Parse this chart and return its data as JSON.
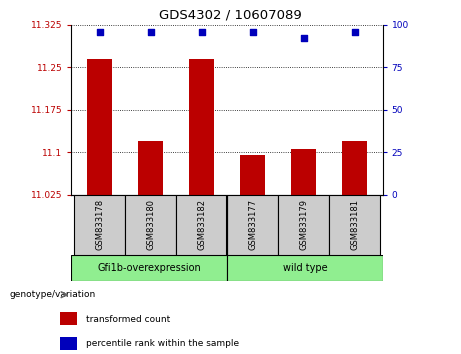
{
  "title": "GDS4302 / 10607089",
  "samples": [
    "GSM833178",
    "GSM833180",
    "GSM833182",
    "GSM833177",
    "GSM833179",
    "GSM833181"
  ],
  "bar_values": [
    11.265,
    11.12,
    11.265,
    11.095,
    11.105,
    11.12
  ],
  "percentile_values": [
    96,
    96,
    96,
    96,
    92,
    96
  ],
  "ylim_left": [
    11.025,
    11.325
  ],
  "ylim_right": [
    0,
    100
  ],
  "yticks_left": [
    11.025,
    11.1,
    11.175,
    11.25,
    11.325
  ],
  "ytick_labels_left": [
    "11.025",
    "11.1",
    "11.175",
    "11.25",
    "11.325"
  ],
  "yticks_right": [
    0,
    25,
    50,
    75,
    100
  ],
  "ytick_labels_right": [
    "0",
    "25",
    "50",
    "75",
    "100"
  ],
  "bar_color": "#bb0000",
  "dot_color": "#0000bb",
  "group1_label": "Gfi1b-overexpression",
  "group2_label": "wild type",
  "group1_color": "#90ee90",
  "group2_color": "#90ee90",
  "genotype_label": "genotype/variation",
  "legend_bar_label": "transformed count",
  "legend_dot_label": "percentile rank within the sample",
  "bar_bottom": 11.025,
  "sample_box_color": "#cccccc",
  "bar_width": 0.5
}
